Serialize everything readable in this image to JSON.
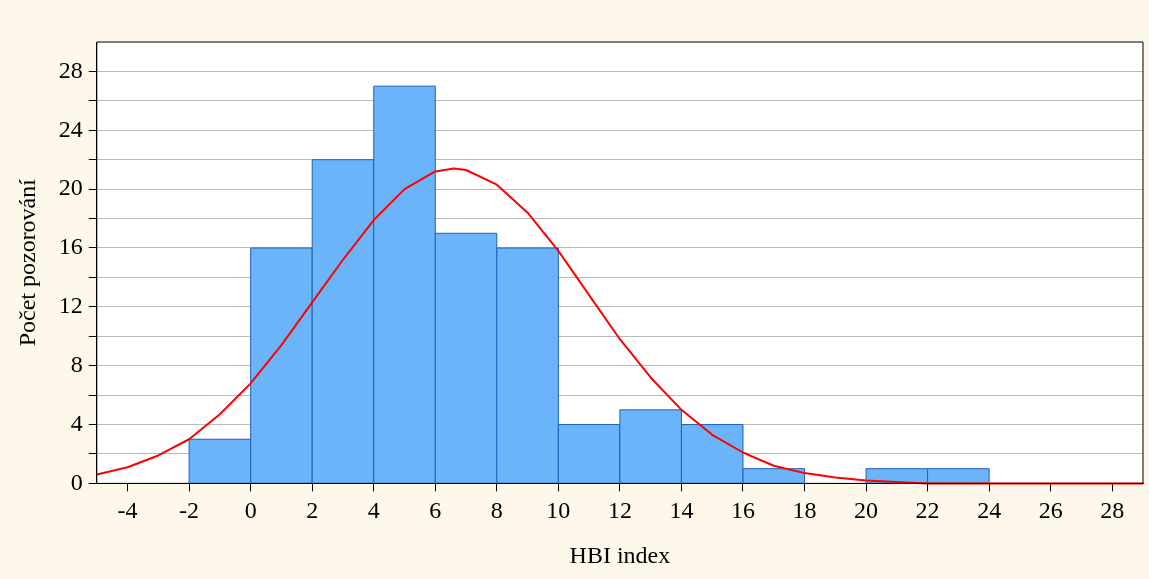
{
  "chart_data": {
    "type": "histogram",
    "xlabel": "HBI index",
    "ylabel": "Počet pozorování",
    "bins": [
      -2,
      0,
      2,
      4,
      6,
      8,
      10,
      12,
      14,
      16,
      18,
      20,
      22,
      24
    ],
    "values": [
      3,
      16,
      22,
      27,
      17,
      16,
      4,
      5,
      4,
      1,
      0,
      1,
      1
    ],
    "color": "#6cb4fa",
    "series": [
      {
        "type": "line",
        "color": "#ff0000",
        "x": [
          -5,
          -4,
          -3,
          -2,
          -1,
          0,
          1,
          2,
          3,
          4,
          5,
          6,
          6.6,
          7,
          8,
          9,
          10,
          11,
          12,
          13,
          14,
          15,
          16,
          17,
          18,
          19,
          20,
          22,
          24,
          26,
          29
        ],
        "values": [
          0.6,
          1.1,
          1.9,
          3.0,
          4.7,
          6.8,
          9.4,
          12.3,
          15.2,
          17.9,
          20.0,
          21.2,
          21.4,
          21.3,
          20.3,
          18.4,
          15.8,
          12.8,
          9.8,
          7.2,
          5.0,
          3.3,
          2.1,
          1.2,
          0.7,
          0.4,
          0.2,
          0.0,
          0.0,
          0.0,
          0.0
        ]
      }
    ],
    "xlim": [
      -5,
      29
    ],
    "xticks": [
      -4,
      -2,
      0,
      2,
      4,
      6,
      8,
      10,
      12,
      14,
      16,
      18,
      20,
      22,
      24,
      26,
      28
    ],
    "ylim": [
      0,
      30
    ],
    "yticks": [
      0,
      {
        "value": 2,
        "label": null
      },
      4,
      {
        "value": 6,
        "label": null
      },
      8,
      {
        "value": 10,
        "label": null
      },
      12,
      {
        "value": 14,
        "label": null
      },
      16,
      {
        "value": 18,
        "label": null
      },
      20,
      {
        "value": 22,
        "label": null
      },
      24,
      {
        "value": 26,
        "label": null
      },
      28
    ],
    "grid": "y",
    "legend": false,
    "marker": "none",
    "line_style": "solid"
  }
}
